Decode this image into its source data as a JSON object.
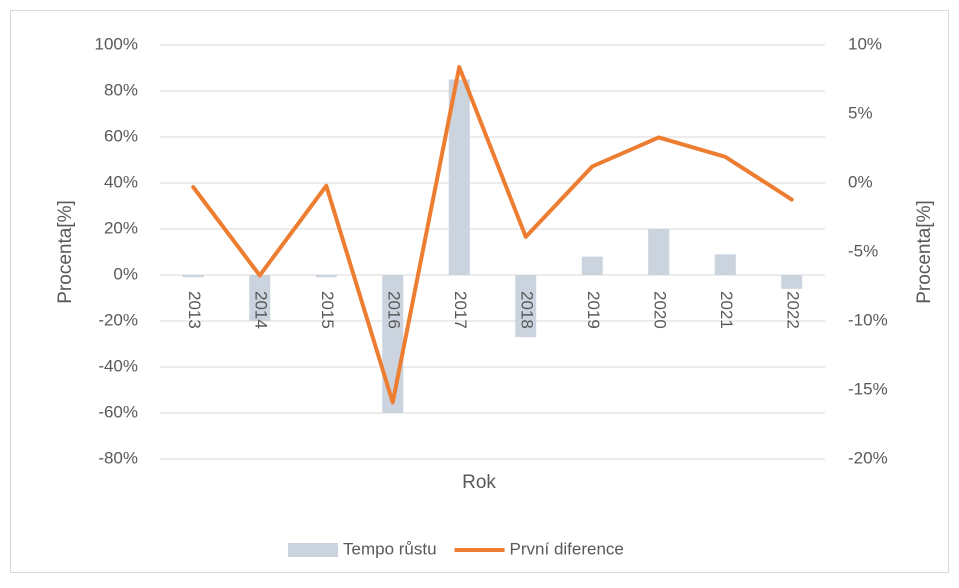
{
  "chart_data": {
    "type": "bar-line",
    "x_label": "Rok",
    "y_label": "Procenta[%]",
    "y2_label": "Procenta[%]",
    "categories": [
      "2013",
      "2014",
      "2015",
      "2016",
      "2017",
      "2018",
      "2019",
      "2020",
      "2021",
      "2022"
    ],
    "series": [
      {
        "name": "Tempo růstu",
        "type": "bar",
        "color": "#cbd3de",
        "values": [
          -1,
          -20,
          -1,
          -60,
          85,
          -27,
          8,
          20,
          9,
          -6
        ]
      },
      {
        "name": "První diference",
        "type": "line",
        "axis": "y2",
        "color": "#ed7d31",
        "values": [
          -0.3,
          -6.7,
          -0.2,
          -15.9,
          8.4,
          -3.9,
          1.2,
          3.3,
          1.9,
          -1.2
        ]
      }
    ],
    "ylim": [
      -80,
      100
    ],
    "yticks": [
      {
        "value": -80,
        "label": "-80%"
      },
      {
        "value": -60,
        "label": "-60%"
      },
      {
        "value": -40,
        "label": "-40%"
      },
      {
        "value": -20,
        "label": "-20%"
      },
      {
        "value": 0,
        "label": "0%"
      },
      {
        "value": 20,
        "label": "20%"
      },
      {
        "value": 40,
        "label": "40%"
      },
      {
        "value": 60,
        "label": "60%"
      },
      {
        "value": 80,
        "label": "80%"
      },
      {
        "value": 100,
        "label": "100%"
      }
    ],
    "y2lim": [
      -20,
      10
    ],
    "y2ticks": [
      {
        "value": -20,
        "label": "-20%"
      },
      {
        "value": -15,
        "label": "-15%"
      },
      {
        "value": -10,
        "label": "-10%"
      },
      {
        "value": -5,
        "label": "-5%"
      },
      {
        "value": 0,
        "label": "0%"
      },
      {
        "value": 5,
        "label": "5%"
      },
      {
        "value": 10,
        "label": "10%"
      }
    ],
    "grid": true,
    "legend": "bottom"
  }
}
